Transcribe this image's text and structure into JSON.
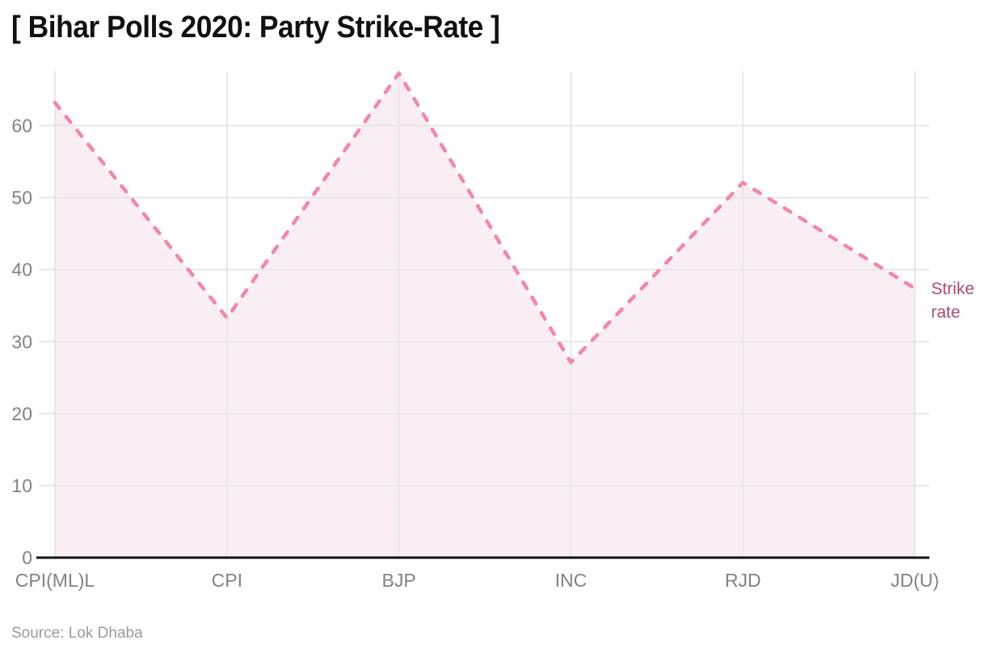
{
  "header": {
    "title": "[ Bihar Polls 2020: Party Strike-Rate ]"
  },
  "annotations": {
    "series_label": "Strike rate"
  },
  "footer": {
    "source": "Source: Lok Dhaba"
  },
  "chart_data": {
    "type": "area",
    "categories": [
      "CPI(ML)L",
      "CPI",
      "BJP",
      "INC",
      "RJD",
      "JD(U)"
    ],
    "series": [
      {
        "name": "Strike rate",
        "values": [
          63.2,
          33.3,
          67.3,
          27.1,
          52.1,
          37.4
        ]
      }
    ],
    "title": "[ Bihar Polls 2020: Party Strike-Rate ]",
    "xlabel": "",
    "ylabel": "",
    "ylim": [
      0,
      67.5
    ],
    "yticks": [
      0,
      10,
      20,
      30,
      40,
      50,
      60
    ],
    "grid": "both",
    "line_style": "dashed",
    "markers": "none",
    "legend_position": "direct-label-right",
    "source": "Source: Lok Dhaba",
    "colors": {
      "line": "#f487a4",
      "fill": "#faeef5",
      "direct_label": "#b04a6e",
      "grid": "#e7e7e7",
      "axis_line": "#141414",
      "tick_text": "#828282",
      "title_text": "#111111",
      "source_text": "#9b9b9b",
      "background": "#ffffff"
    }
  }
}
